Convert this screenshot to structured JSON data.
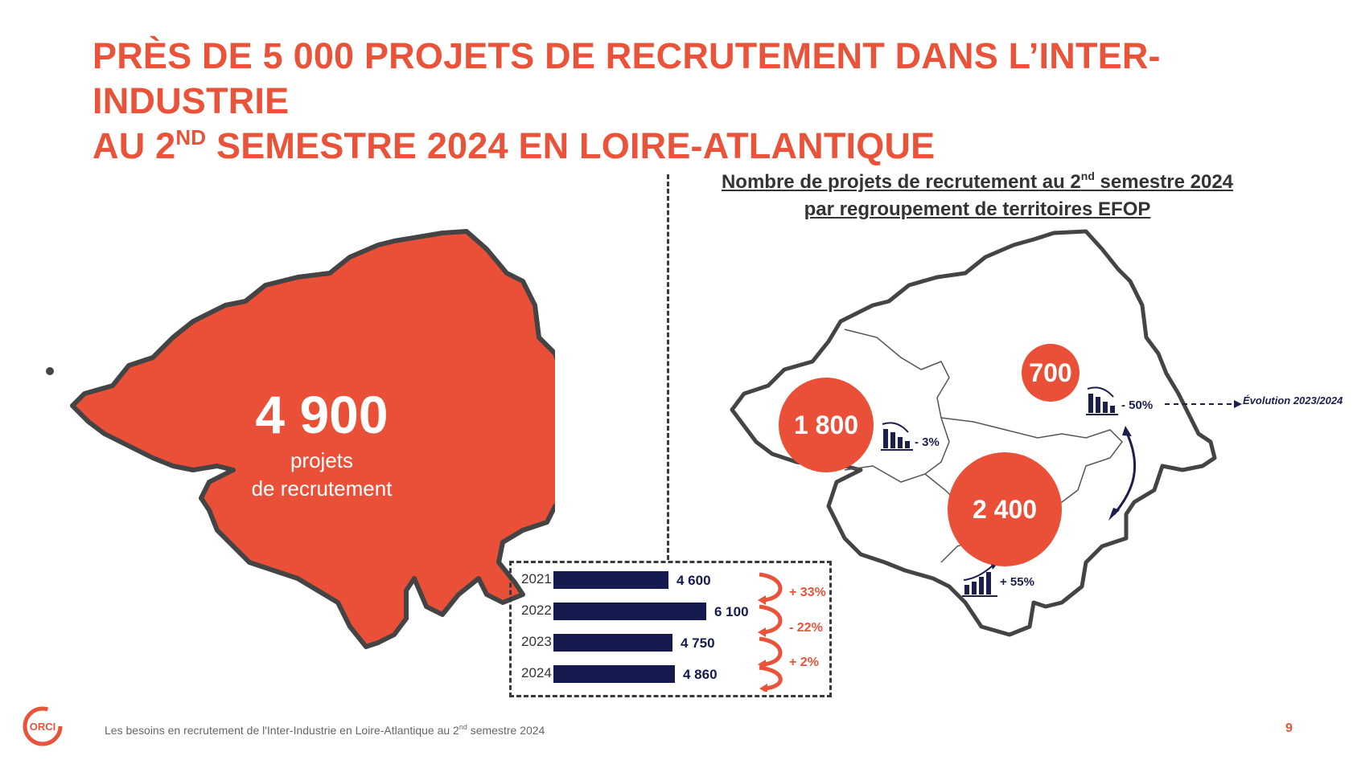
{
  "title": {
    "line1": "PRÈS DE 5 000 PROJETS DE RECRUTEMENT DANS L’INTER-INDUSTRIE",
    "line2_prefix": "AU 2",
    "line2_sup": "ND",
    "line2_suffix": " SEMESTRE 2024 EN LOIRE-ATLANTIQUE"
  },
  "left_map": {
    "value": "4 900",
    "caption_line1": "projets",
    "caption_line2": "de recrutement",
    "color": "#ea5038"
  },
  "right_map": {
    "title_line1_prefix": "Nombre de projets de recrutement au 2",
    "title_line1_sup": "nd",
    "title_line1_suffix": " semestre 2024",
    "title_line2": "par regroupement de territoires EFOP",
    "zones": [
      {
        "value": "1 800",
        "evolution": "- 3%",
        "trend": "down"
      },
      {
        "value": "700",
        "evolution": "- 50%",
        "trend": "down"
      },
      {
        "value": "2 400",
        "evolution": "+ 55%",
        "trend": "up"
      }
    ],
    "legend_label": "Évolution 2023/2024"
  },
  "yearly": {
    "rows": [
      {
        "year": "2021",
        "value": 4600,
        "label": "4 600"
      },
      {
        "year": "2022",
        "value": 6100,
        "label": "6 100"
      },
      {
        "year": "2023",
        "value": 4750,
        "label": "4 750"
      },
      {
        "year": "2024",
        "value": 4860,
        "label": "4 860"
      }
    ],
    "changes": [
      "+ 33%",
      "- 22%",
      "+ 2%"
    ],
    "bar_color": "#151a4f",
    "accent_color": "#e8533a"
  },
  "footer": {
    "text_prefix": "Les besoins en recrutement de l'Inter-Industrie en Loire-Atlantique au 2",
    "text_sup": "nd",
    "text_suffix": " semestre 2024",
    "page": "9",
    "logo_text": "ORCI"
  }
}
